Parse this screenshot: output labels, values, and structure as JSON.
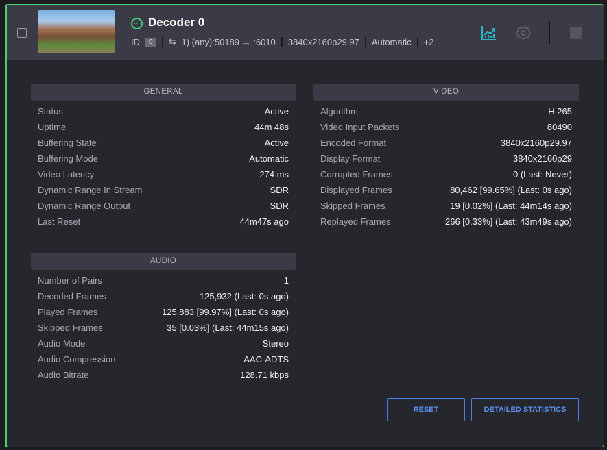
{
  "header": {
    "title": "Decoder 0",
    "id_label": "ID",
    "id_value": "0",
    "route": "1) (any):50189 → :6010",
    "resolution": "3840x2160p29.97",
    "mode": "Automatic",
    "more": "+2"
  },
  "general": {
    "title": "GENERAL",
    "rows": [
      [
        "Status",
        "Active"
      ],
      [
        "Uptime",
        "44m 48s"
      ],
      [
        "Buffering State",
        "Active"
      ],
      [
        "Buffering Mode",
        "Automatic"
      ],
      [
        "Video Latency",
        "274 ms"
      ],
      [
        "Dynamic Range In Stream",
        "SDR"
      ],
      [
        "Dynamic Range Output",
        "SDR"
      ],
      [
        "Last Reset",
        "44m47s ago"
      ]
    ]
  },
  "audio": {
    "title": "AUDIO",
    "rows": [
      [
        "Number of Pairs",
        "1"
      ],
      [
        "Decoded Frames",
        "125,932 (Last: 0s ago)"
      ],
      [
        "Played Frames",
        "125,883 [99.97%] (Last: 0s ago)"
      ],
      [
        "Skipped Frames",
        "35 [0.03%] (Last: 44m15s ago)"
      ],
      [
        "Audio Mode",
        "Stereo"
      ],
      [
        "Audio Compression",
        "AAC-ADTS"
      ],
      [
        "Audio Bitrate",
        "128.71 kbps"
      ]
    ]
  },
  "video": {
    "title": "VIDEO",
    "rows": [
      [
        "Algorithm",
        "H.265"
      ],
      [
        "Video Input Packets",
        "80490"
      ],
      [
        "Encoded Format",
        "3840x2160p29.97"
      ],
      [
        "Display Format",
        "3840x2160p29"
      ],
      [
        "Corrupted Frames",
        "0 (Last: Never)"
      ],
      [
        "Displayed Frames",
        "80,462 [99.65%] (Last: 0s ago)"
      ],
      [
        "Skipped Frames",
        "19 [0.02%] (Last: 44m14s ago)"
      ],
      [
        "Replayed Frames",
        "266 [0.33%] (Last: 43m49s ago)"
      ]
    ]
  },
  "buttons": {
    "reset": "RESET",
    "detailed": "DETAILED STATISTICS"
  },
  "colors": {
    "accent": "#4ccf6e",
    "chart_icon": "#2bb5c8",
    "button": "#4a7ee8"
  }
}
